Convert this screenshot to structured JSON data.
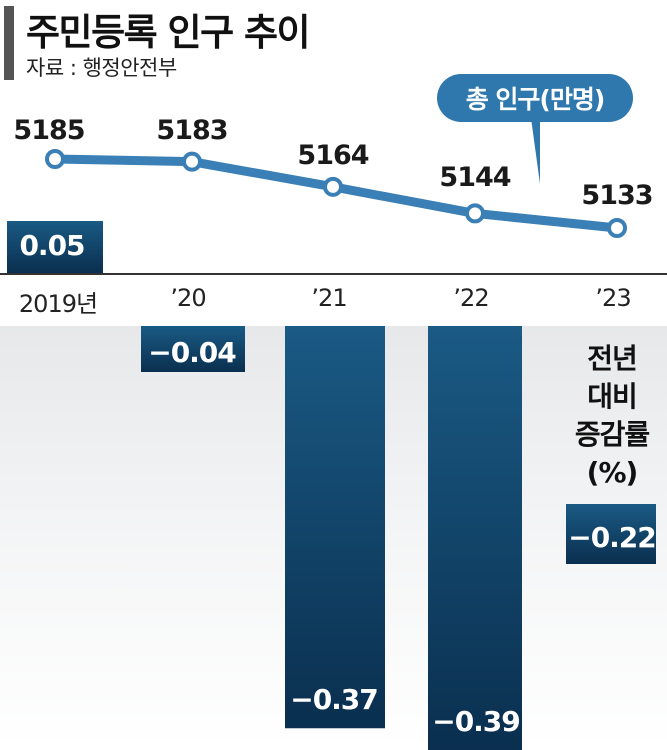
{
  "title": "주민등록 인구 추이",
  "source": "자료 : 행정안전부",
  "callout": "총 인구(만명)",
  "rate_caption": [
    "전년",
    "대비",
    "증감률",
    "(%)"
  ],
  "colors": {
    "line": "#3a7fb5",
    "bar_top": "#1a5a84",
    "bar_bottom": "#0a2f4f"
  },
  "chart_data": {
    "type": "line",
    "categories": [
      "2019년",
      "’20",
      "’21",
      "’22",
      "’23"
    ],
    "series": [
      {
        "name": "총 인구(만명)",
        "type": "line",
        "values": [
          5185,
          5183,
          5164,
          5144,
          5133
        ]
      },
      {
        "name": "전년 대비 증감률(%)",
        "type": "bar",
        "values": [
          0.05,
          -0.04,
          -0.37,
          -0.39,
          -0.22
        ]
      }
    ],
    "value_labels": {
      "population": [
        "5185",
        "5183",
        "5164",
        "5144",
        "5133"
      ],
      "rate": [
        "0.05",
        "−0.04",
        "−0.37",
        "−0.39",
        "−0.22"
      ]
    },
    "title": "주민등록 인구 추이",
    "xlabel": "",
    "ylabel": "",
    "grid": false,
    "legend": "none"
  }
}
